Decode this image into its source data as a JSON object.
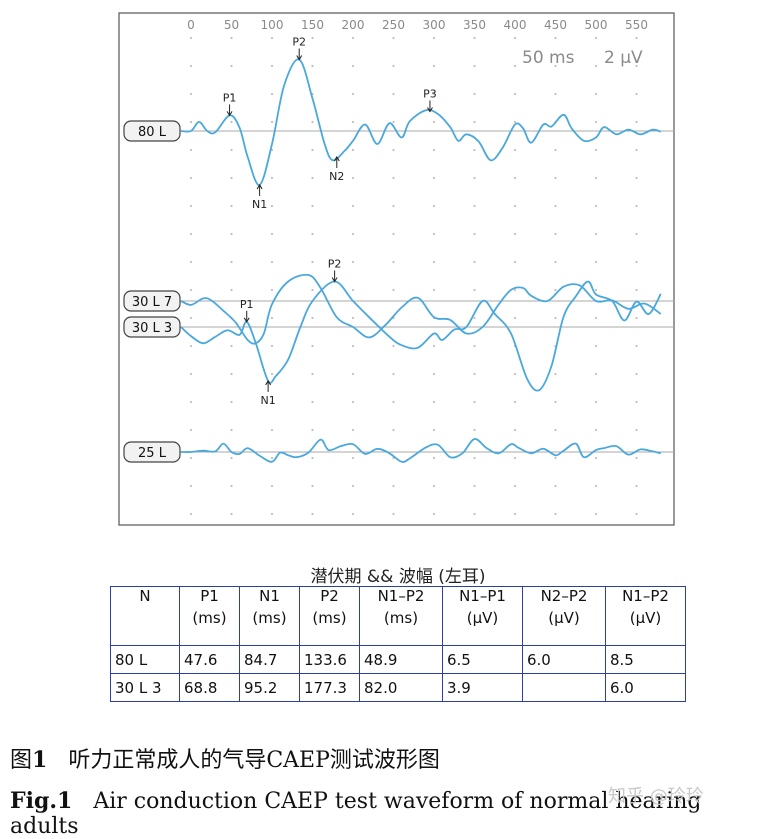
{
  "chart_data": {
    "type": "line",
    "x_ticks": [
      0,
      50,
      100,
      150,
      200,
      250,
      300,
      350,
      400,
      450,
      500,
      550
    ],
    "scale": {
      "time": "50 ms",
      "amplitude": "2 µV"
    },
    "traces": [
      {
        "label": "80 L",
        "points": [
          [
            0,
            0
          ],
          [
            10,
            1.4
          ],
          [
            20,
            0
          ],
          [
            30,
            -0.2
          ],
          [
            47.6,
            2.4
          ],
          [
            60,
            0.5
          ],
          [
            70,
            -4
          ],
          [
            84.7,
            -8.3
          ],
          [
            100,
            -2
          ],
          [
            115,
            7
          ],
          [
            133.6,
            11
          ],
          [
            150,
            5
          ],
          [
            165,
            -2
          ],
          [
            175,
            -4.5
          ],
          [
            190,
            -3
          ],
          [
            200,
            -1.5
          ],
          [
            215,
            1
          ],
          [
            230,
            -2
          ],
          [
            245,
            1.2
          ],
          [
            260,
            -1
          ],
          [
            270,
            1.5
          ],
          [
            290,
            3.2
          ],
          [
            305,
            2.6
          ],
          [
            320,
            0.6
          ],
          [
            330,
            -1.5
          ],
          [
            340,
            -0.5
          ],
          [
            355,
            -1.6
          ],
          [
            370,
            -4.5
          ],
          [
            385,
            -2.5
          ],
          [
            400,
            1
          ],
          [
            410,
            0.4
          ],
          [
            420,
            -1.8
          ],
          [
            435,
            1
          ],
          [
            445,
            0.7
          ],
          [
            460,
            2.5
          ],
          [
            470,
            0.4
          ],
          [
            485,
            -1.5
          ],
          [
            500,
            -1
          ],
          [
            510,
            0.6
          ],
          [
            525,
            -0.5
          ],
          [
            540,
            0.2
          ],
          [
            555,
            -0.5
          ],
          [
            570,
            0.2
          ],
          [
            580,
            -0.1
          ]
        ],
        "peaks": [
          {
            "name": "P1",
            "x": 47.6
          },
          {
            "name": "N1",
            "x": 84.7
          },
          {
            "name": "P2",
            "x": 133.6
          },
          {
            "name": "N2",
            "x": 180
          },
          {
            "name": "P3",
            "x": 295
          }
        ]
      },
      {
        "label": "30 L 7",
        "points": [
          [
            0,
            -0.6
          ],
          [
            15,
            0.4
          ],
          [
            25,
            0.1
          ],
          [
            40,
            -1.5
          ],
          [
            55,
            -3.3
          ],
          [
            70,
            -6
          ],
          [
            80,
            -6.5
          ],
          [
            90,
            -5
          ],
          [
            100,
            -0.5
          ],
          [
            120,
            3
          ],
          [
            145,
            4
          ],
          [
            160,
            2
          ],
          [
            180,
            -2.5
          ],
          [
            200,
            -4
          ],
          [
            220,
            -5.6
          ],
          [
            240,
            -3.7
          ],
          [
            260,
            -1
          ],
          [
            280,
            0.5
          ],
          [
            300,
            -2.5
          ],
          [
            320,
            -2.9
          ],
          [
            340,
            -5
          ],
          [
            360,
            -4
          ],
          [
            380,
            -0.5
          ],
          [
            395,
            1.7
          ],
          [
            410,
            2
          ],
          [
            420,
            0.8
          ],
          [
            440,
            0
          ],
          [
            460,
            2.2
          ],
          [
            480,
            2.4
          ],
          [
            500,
            0
          ],
          [
            520,
            0.1
          ],
          [
            540,
            -1.2
          ],
          [
            560,
            -0.4
          ],
          [
            580,
            -2
          ]
        ]
      },
      {
        "label": "30 L 3",
        "points": [
          [
            0,
            -1.4
          ],
          [
            15,
            -2.5
          ],
          [
            30,
            -1.5
          ],
          [
            45,
            -0.5
          ],
          [
            60,
            -1.2
          ],
          [
            68.8,
            0.8
          ],
          [
            80,
            -2.5
          ],
          [
            95.2,
            -8.3
          ],
          [
            105,
            -7.5
          ],
          [
            120,
            -5
          ],
          [
            135,
            0
          ],
          [
            150,
            4
          ],
          [
            177.3,
            7
          ],
          [
            200,
            4
          ],
          [
            220,
            1.5
          ],
          [
            245,
            -1.5
          ],
          [
            260,
            -2.8
          ],
          [
            280,
            -3.2
          ],
          [
            300,
            -1
          ],
          [
            310,
            -2
          ],
          [
            325,
            -0.4
          ],
          [
            340,
            0
          ],
          [
            360,
            4
          ],
          [
            375,
            2
          ],
          [
            395,
            -1
          ],
          [
            415,
            -8
          ],
          [
            430,
            -9.7
          ],
          [
            445,
            -6
          ],
          [
            460,
            1.6
          ],
          [
            475,
            4.7
          ],
          [
            490,
            7
          ],
          [
            500,
            5
          ],
          [
            520,
            4
          ],
          [
            535,
            1
          ],
          [
            550,
            3.9
          ],
          [
            565,
            2
          ],
          [
            580,
            5.1
          ]
        ],
        "peaks": [
          {
            "name": "P1",
            "x": 68.8
          },
          {
            "name": "N1",
            "x": 95.2
          },
          {
            "name": "P2",
            "x": 177.3
          }
        ]
      },
      {
        "label": "25 L",
        "points": [
          [
            0,
            0
          ],
          [
            15,
            0.2
          ],
          [
            30,
            0.1
          ],
          [
            40,
            1.3
          ],
          [
            50,
            0
          ],
          [
            60,
            -0.3
          ],
          [
            70,
            0.6
          ],
          [
            85,
            -0.6
          ],
          [
            100,
            -1.5
          ],
          [
            110,
            -0.1
          ],
          [
            120,
            -0.5
          ],
          [
            130,
            -0.8
          ],
          [
            145,
            -0.1
          ],
          [
            160,
            1.9
          ],
          [
            170,
            0.3
          ],
          [
            185,
            0.9
          ],
          [
            200,
            1.2
          ],
          [
            215,
            -0.3
          ],
          [
            230,
            0.5
          ],
          [
            245,
            -0.2
          ],
          [
            260,
            -1.5
          ],
          [
            270,
            -1
          ],
          [
            290,
            0.7
          ],
          [
            305,
            1.1
          ],
          [
            320,
            -0.8
          ],
          [
            335,
            -0.2
          ],
          [
            350,
            2
          ],
          [
            365,
            0.6
          ],
          [
            380,
            -0.2
          ],
          [
            395,
            1.2
          ],
          [
            405,
            0.6
          ],
          [
            420,
            -0.2
          ],
          [
            435,
            0.5
          ],
          [
            450,
            -0.5
          ],
          [
            460,
            0.2
          ],
          [
            475,
            1.3
          ],
          [
            485,
            -0.8
          ],
          [
            500,
            0.3
          ],
          [
            510,
            0.6
          ],
          [
            525,
            0.9
          ],
          [
            540,
            -0.4
          ],
          [
            555,
            0.4
          ],
          [
            570,
            0.1
          ],
          [
            580,
            -0.2
          ]
        ]
      }
    ],
    "colors": {
      "trace": "#4aa8dd",
      "baseline": "#aaaaaa",
      "dots": "#bfbfbf",
      "frame": "#555555"
    }
  },
  "table": {
    "title": "潜伏期 && 波幅 (左耳)",
    "headers": [
      {
        "name": "N",
        "unit": ""
      },
      {
        "name": "P1",
        "unit": "(ms)"
      },
      {
        "name": "N1",
        "unit": "(ms)"
      },
      {
        "name": "P2",
        "unit": "(ms)"
      },
      {
        "name": "N1–P2",
        "unit": "(ms)"
      },
      {
        "name": "N1–P1",
        "unit": "(µV)"
      },
      {
        "name": "N2–P2",
        "unit": "(µV)"
      },
      {
        "name": "N1–P2",
        "unit": "(µV)"
      }
    ],
    "rows": [
      [
        "80 L",
        "47.6",
        "84.7",
        "133.6",
        "48.9",
        "6.5",
        "6.0",
        "8.5"
      ],
      [
        "30 L 3",
        "68.8",
        "95.2",
        "177.3",
        "82.0",
        "3.9",
        "",
        "6.0"
      ]
    ]
  },
  "caption": {
    "cn_label": "图",
    "cn_num": "1",
    "cn_text": "听力正常成人的气导CAEP测试波形图",
    "en_label": "Fig.1",
    "en_text": "Air conduction CAEP test waveform of normal hearing adults"
  },
  "watermark": "知乎 @玲玲"
}
